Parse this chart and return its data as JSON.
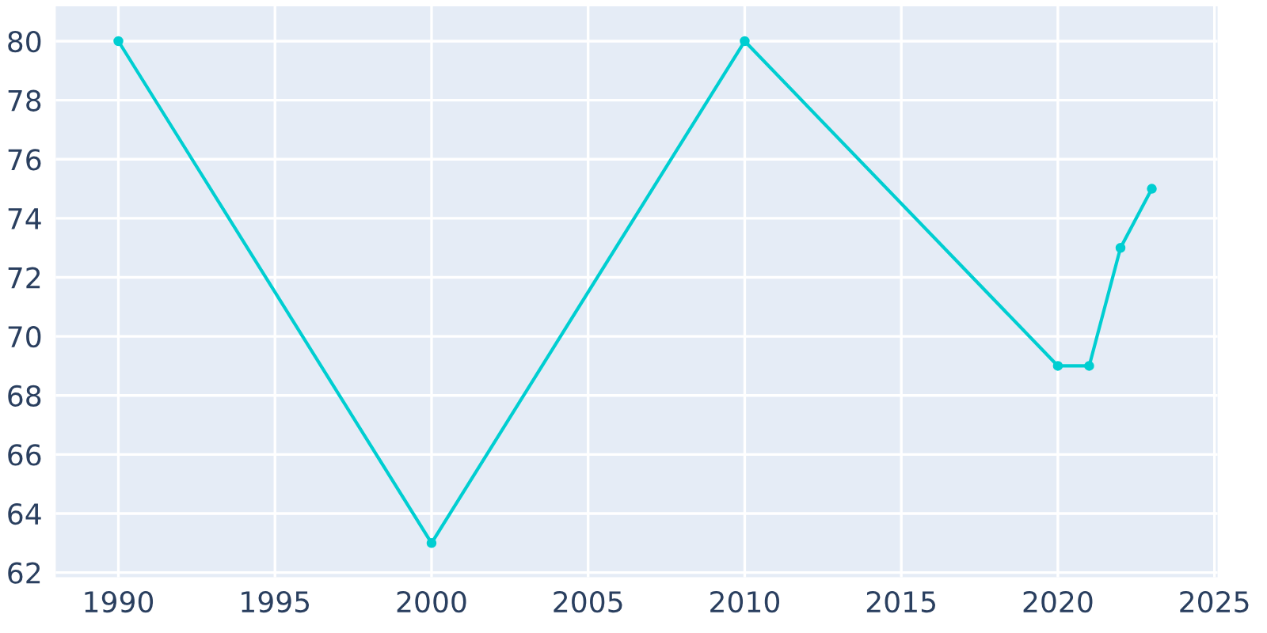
{
  "chart_data": {
    "type": "line",
    "x": [
      1990,
      2000,
      2010,
      2020,
      2021,
      2022,
      2023
    ],
    "series": [
      {
        "color": "#00ced1",
        "values": [
          80,
          63,
          80,
          69,
          69,
          73,
          75
        ]
      }
    ],
    "xlim": [
      1988,
      2025.1
    ],
    "ylim": [
      61.84,
      81.18
    ],
    "xticks": [
      1990,
      1995,
      2000,
      2005,
      2010,
      2015,
      2020,
      2025
    ],
    "yticks": [
      62,
      64,
      66,
      68,
      70,
      72,
      74,
      76,
      78,
      80
    ],
    "grid": true,
    "marker": "circle",
    "line_style": "solid"
  }
}
